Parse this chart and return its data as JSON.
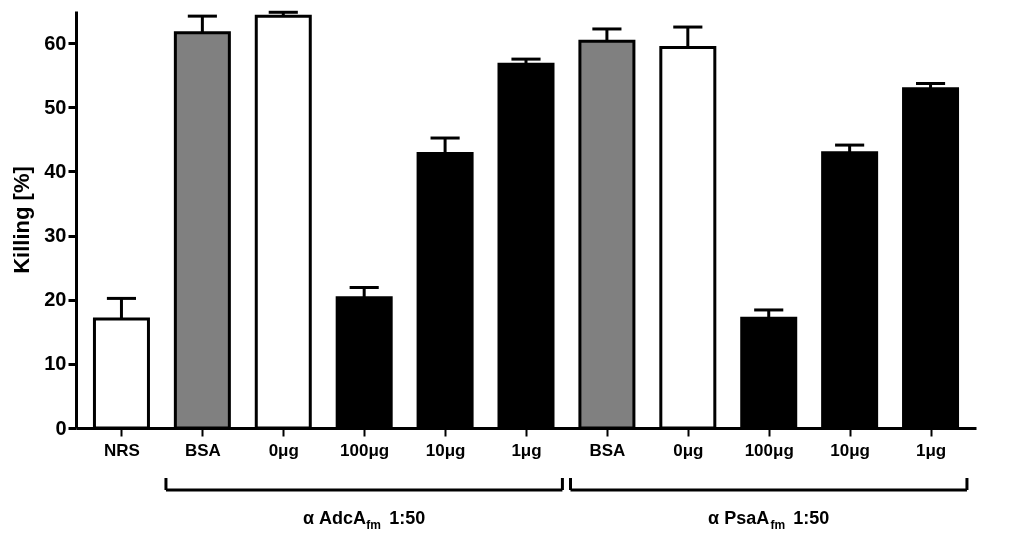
{
  "chart_data": {
    "type": "bar",
    "ylabel": "Killing [%]",
    "categories": [
      "NRS",
      "BSA",
      "0μg",
      "100μg",
      "10μg",
      "1μg",
      "BSA",
      "0μg",
      "100μg",
      "10μg",
      "1μg"
    ],
    "values": [
      17.0,
      61.6,
      64.2,
      20.3,
      42.8,
      56.7,
      60.3,
      59.3,
      17.1,
      42.9,
      52.9
    ],
    "errors": [
      3.2,
      2.6,
      0.6,
      1.6,
      2.4,
      0.8,
      1.9,
      3.2,
      1.3,
      1.2,
      0.8
    ],
    "colors": [
      "#ffffff",
      "#808080",
      "#ffffff",
      "#000000",
      "#000000",
      "#000000",
      "#808080",
      "#ffffff",
      "#000000",
      "#000000",
      "#000000"
    ],
    "ylim": [
      0,
      65
    ],
    "yticks": [
      0,
      10,
      20,
      30,
      40,
      50,
      60
    ],
    "grid": false,
    "annotations": [
      "α AdcA$_{fm}$ 1:50",
      "α PsaA$_{fm}$ 1:50"
    ]
  }
}
